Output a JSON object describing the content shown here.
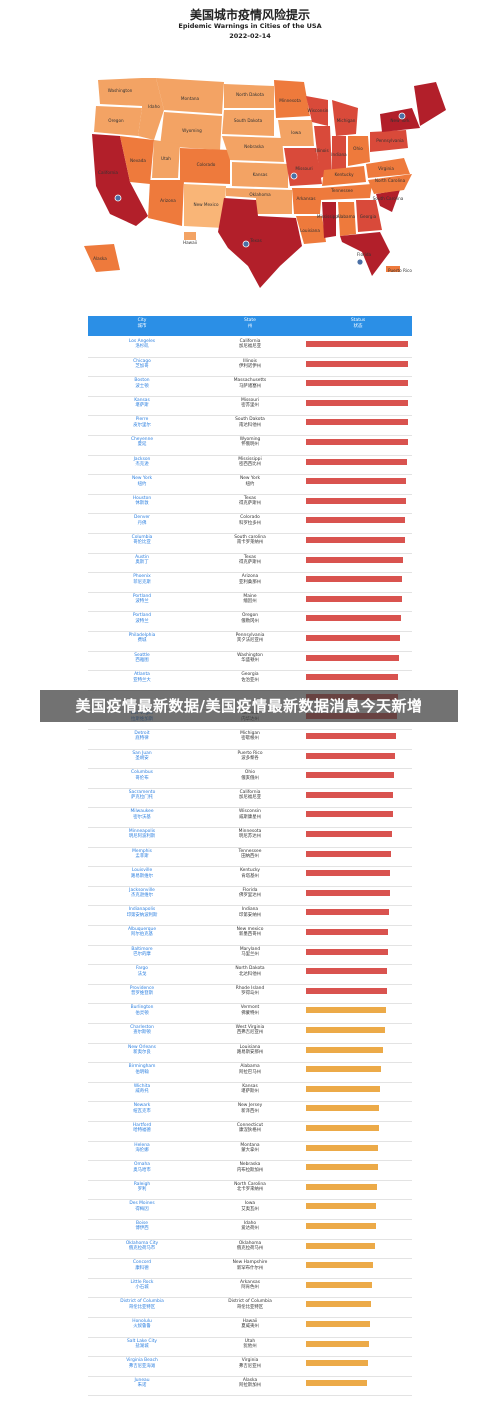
{
  "header": {
    "title": "美国城市疫情风险提示",
    "subtitle": "Epidemic Warnings in Cities of the USA",
    "date": "2022-02-14"
  },
  "map": {
    "state_labels": [
      "Washington",
      "Oregon",
      "Idaho",
      "Montana",
      "Wyoming",
      "North Dakota",
      "South Dakota",
      "Minnesota",
      "Nebraska",
      "Iowa",
      "Wisconsin",
      "Michigan",
      "Illinois",
      "Indiana",
      "Ohio",
      "Pennsylvania",
      "New York",
      "Kansas",
      "Missouri",
      "Kentucky",
      "Virginia",
      "Nevada",
      "Utah",
      "Colorado",
      "California",
      "Arizona",
      "New Mexico",
      "Oklahoma",
      "Arkansas",
      "Tennessee",
      "North Carolina",
      "South Carolina",
      "Mississippi",
      "Alabama",
      "Georgia",
      "Texas",
      "Louisiana",
      "Florida",
      "Alaska",
      "Hawaii",
      "Puerto Rico"
    ],
    "city_pins": [
      "Los Angeles",
      "Houston",
      "Florida",
      "Missouri",
      "New York"
    ]
  },
  "table": {
    "headers": {
      "city_en": "City",
      "city_zh": "城市",
      "state_en": "State",
      "state_zh": "州",
      "status_en": "Status",
      "status_zh": "状态"
    },
    "colors": {
      "red": "#d9534f",
      "orange": "#ecaa48"
    }
  },
  "chart_data": {
    "type": "bar",
    "title": "美国城市疫情风险提示",
    "subtitle": "Epidemic Warnings in Cities of the USA",
    "categories": [
      {
        "city": "Los Angeles",
        "city_zh": "洛杉矶",
        "state": "California",
        "state_zh": "加尼福尼亚",
        "level": "red"
      },
      {
        "city": "Chicago",
        "city_zh": "芝加哥",
        "state": "Illinois",
        "state_zh": "伊利诺伊州",
        "level": "red"
      },
      {
        "city": "Boston",
        "city_zh": "波士顿",
        "state": "Massachusetts",
        "state_zh": "马萨诸塞州",
        "level": "red"
      },
      {
        "city": "Kansas",
        "city_zh": "堪萨斯",
        "state": "Missouri",
        "state_zh": "密苏里州",
        "level": "red"
      },
      {
        "city": "Pierre",
        "city_zh": "皮尔里尔",
        "state": "South Dakota",
        "state_zh": "南达科他州",
        "level": "red"
      },
      {
        "city": "Cheyenne",
        "city_zh": "夏延",
        "state": "Wyoming",
        "state_zh": "怀俄明州",
        "level": "red"
      },
      {
        "city": "Jackson",
        "city_zh": "杰克逊",
        "state": "Mississippi",
        "state_zh": "密西西比州",
        "level": "red"
      },
      {
        "city": "New York",
        "city_zh": "纽约",
        "state": "New York",
        "state_zh": "纽约",
        "level": "red"
      },
      {
        "city": "Houston",
        "city_zh": "休斯敦",
        "state": "Texas",
        "state_zh": "得克萨斯州",
        "level": "red"
      },
      {
        "city": "Denver",
        "city_zh": "丹佛",
        "state": "Colorado",
        "state_zh": "科罗拉多州",
        "level": "red"
      },
      {
        "city": "Columbia",
        "city_zh": "哥伦比亚",
        "state": "South carolina",
        "state_zh": "南卡罗莱纳州",
        "level": "red"
      },
      {
        "city": "Austin",
        "city_zh": "奥斯丁",
        "state": "Texas",
        "state_zh": "得克萨斯州",
        "level": "red"
      },
      {
        "city": "Phoenix",
        "city_zh": "菲尼克斯",
        "state": "Arizona",
        "state_zh": "亚利桑那州",
        "level": "red"
      },
      {
        "city": "Portland",
        "city_zh": "波特兰",
        "state": "Maine",
        "state_zh": "缅因州",
        "level": "red"
      },
      {
        "city": "Portland",
        "city_zh": "波特兰",
        "state": "Oregon",
        "state_zh": "俄勒冈州",
        "level": "red"
      },
      {
        "city": "Philadelphia",
        "city_zh": "费城",
        "state": "Pennsylvania",
        "state_zh": "宾夕法尼亚州",
        "level": "red"
      },
      {
        "city": "Seattle",
        "city_zh": "西雅图",
        "state": "Washington",
        "state_zh": "华盛顿州",
        "level": "red"
      },
      {
        "city": "Atlanta",
        "city_zh": "亚特兰大",
        "state": "Georgia",
        "state_zh": "佐治亚州",
        "level": "red"
      },
      {
        "city": "",
        "city_zh": "",
        "state": "",
        "state_zh": "",
        "level": "red"
      },
      {
        "city": "Las Vegas",
        "city_zh": "拉斯维加斯",
        "state": "Nevada",
        "state_zh": "内华达州",
        "level": "red"
      },
      {
        "city": "Detroit",
        "city_zh": "底特律",
        "state": "Michigan",
        "state_zh": "密歇根州",
        "level": "red"
      },
      {
        "city": "San Juan",
        "city_zh": "圣胡安",
        "state": "Puerto Rico",
        "state_zh": "波多黎各",
        "level": "red"
      },
      {
        "city": "Columbus",
        "city_zh": "哥伦布",
        "state": "Ohio",
        "state_zh": "俄亥俄州",
        "level": "red"
      },
      {
        "city": "Sacramento",
        "city_zh": "萨克拉门托",
        "state": "California",
        "state_zh": "加尼福尼亚",
        "level": "red"
      },
      {
        "city": "Milwaukee",
        "city_zh": "密尔沃基",
        "state": "Wisconsin",
        "state_zh": "威斯康星州",
        "level": "red"
      },
      {
        "city": "Minneapolis",
        "city_zh": "明尼阿波利斯",
        "state": "Minnesota",
        "state_zh": "明尼苏达州",
        "level": "red"
      },
      {
        "city": "Memphis",
        "city_zh": "孟菲斯",
        "state": "Tennessee",
        "state_zh": "田纳西州",
        "level": "red"
      },
      {
        "city": "Louisville",
        "city_zh": "路易斯维尔",
        "state": "Kentucky",
        "state_zh": "肯塔基州",
        "level": "red"
      },
      {
        "city": "Jacksonville",
        "city_zh": "杰克逊维尔",
        "state": "Florida",
        "state_zh": "佛罗里达州",
        "level": "red"
      },
      {
        "city": "Indianapolis",
        "city_zh": "印第安纳波利斯",
        "state": "Indiana",
        "state_zh": "印第安纳州",
        "level": "red"
      },
      {
        "city": "Albuquerque",
        "city_zh": "阿尔伯克基",
        "state": "New mexico",
        "state_zh": "新墨西哥州",
        "level": "red"
      },
      {
        "city": "Baltimore",
        "city_zh": "巴尔的摩",
        "state": "Maryland",
        "state_zh": "马里兰州",
        "level": "red"
      },
      {
        "city": "Fargo",
        "city_zh": "法戈",
        "state": "North Dakota",
        "state_zh": "北达科他州",
        "level": "red"
      },
      {
        "city": "Providence",
        "city_zh": "普罗维登斯",
        "state": "Rhode Island",
        "state_zh": "罗得岛州",
        "level": "red"
      },
      {
        "city": "Burlington",
        "city_zh": "伯灵顿",
        "state": "Vermont",
        "state_zh": "佛蒙特州",
        "level": "orange"
      },
      {
        "city": "Charleston",
        "city_zh": "查尔斯顿",
        "state": "West Virginia",
        "state_zh": "西弗吉尼亚州",
        "level": "orange"
      },
      {
        "city": "New Orleans",
        "city_zh": "新奥尔良",
        "state": "Louisiana",
        "state_zh": "路易斯安那州",
        "level": "orange"
      },
      {
        "city": "Birmingham",
        "city_zh": "伯明翰",
        "state": "Alabama",
        "state_zh": "阿拉巴马州",
        "level": "orange"
      },
      {
        "city": "Wichita",
        "city_zh": "威奇托",
        "state": "Kansas",
        "state_zh": "堪萨斯州",
        "level": "orange"
      },
      {
        "city": "Newark",
        "city_zh": "纽瓦克市",
        "state": "New Jersey",
        "state_zh": "新泽西州",
        "level": "orange"
      },
      {
        "city": "Hartford",
        "city_zh": "哈特福德",
        "state": "Connecticut",
        "state_zh": "康涅狄格州",
        "level": "orange"
      },
      {
        "city": "Helena",
        "city_zh": "海伦娜",
        "state": "Montana",
        "state_zh": "蒙大拿州",
        "level": "orange"
      },
      {
        "city": "Omaha",
        "city_zh": "奥马哈市",
        "state": "Nebraska",
        "state_zh": "内布拉斯加州",
        "level": "orange"
      },
      {
        "city": "Raleigh",
        "city_zh": "罗利",
        "state": "North Carolina",
        "state_zh": "北卡罗来纳州",
        "level": "orange"
      },
      {
        "city": "Des Moines",
        "city_zh": "得梅因",
        "state": "Iowa",
        "state_zh": "艾奥瓦州",
        "level": "orange"
      },
      {
        "city": "Boise",
        "city_zh": "博伊西",
        "state": "Idaho",
        "state_zh": "爱达荷州",
        "level": "orange"
      },
      {
        "city": "Oklahoma City",
        "city_zh": "俄克拉荷马市",
        "state": "Oklahoma",
        "state_zh": "俄克拉荷马州",
        "level": "orange"
      },
      {
        "city": "Concord",
        "city_zh": "康科德",
        "state": "New Hampshire",
        "state_zh": "新罕布什尔州",
        "level": "orange"
      },
      {
        "city": "Little Rock",
        "city_zh": "小石城",
        "state": "Arkansas",
        "state_zh": "阿肯色州",
        "level": "orange"
      },
      {
        "city": "District of Columbia",
        "city_zh": "哥伦比亚特区",
        "state": "District of Columbia",
        "state_zh": "哥伦比亚特区",
        "level": "orange"
      },
      {
        "city": "Honolulu",
        "city_zh": "火奴鲁鲁",
        "state": "Hawaii",
        "state_zh": "夏威夷州",
        "level": "orange"
      },
      {
        "city": "Salt Lake City",
        "city_zh": "盐湖城",
        "state": "Utah",
        "state_zh": "犹他州",
        "level": "orange"
      },
      {
        "city": "Virginia Beach",
        "city_zh": "弗吉尼亚海滩",
        "state": "Virginia",
        "state_zh": "弗吉尼亚州",
        "level": "orange"
      },
      {
        "city": "Juneau",
        "city_zh": "朱诺",
        "state": "Alaska",
        "state_zh": "阿拉斯加州",
        "level": "orange"
      }
    ],
    "values": [
      1.0,
      1.0,
      1.0,
      1.0,
      1.0,
      1.0,
      0.99,
      0.98,
      0.98,
      0.97,
      0.97,
      0.95,
      0.94,
      0.94,
      0.93,
      0.92,
      0.91,
      0.9,
      0.9,
      0.89,
      0.88,
      0.87,
      0.86,
      0.85,
      0.85,
      0.84,
      0.83,
      0.82,
      0.82,
      0.81,
      0.8,
      0.8,
      0.79,
      0.79,
      0.78,
      0.77,
      0.75,
      0.74,
      0.73,
      0.72,
      0.72,
      0.71,
      0.71,
      0.7,
      0.69,
      0.69,
      0.68,
      0.66,
      0.65,
      0.64,
      0.63,
      0.62,
      0.61,
      0.6
    ]
  },
  "overlay": {
    "text": "美国疫情最新数据/美国疫情最新数据消息今天新增"
  }
}
